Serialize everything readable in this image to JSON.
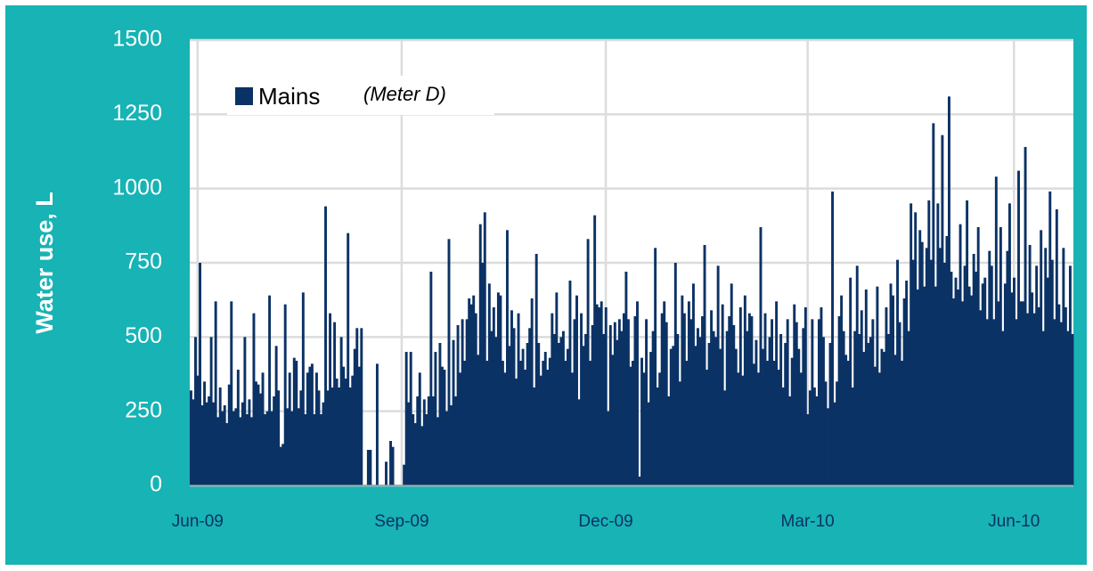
{
  "chart_data": {
    "type": "bar",
    "y_label": "Water use, L",
    "annotation": "(Meter D)",
    "ylim": [
      0,
      1500
    ],
    "yticks": [
      0,
      250,
      500,
      750,
      1000,
      1250,
      1500
    ],
    "grid": true,
    "legend": "top-left",
    "categories": [
      null,
      null,
      null,
      "Jun-09",
      null,
      null,
      null,
      null,
      null,
      null,
      null,
      null,
      null,
      null,
      null,
      null,
      null,
      null,
      null,
      null,
      null,
      null,
      null,
      null,
      null,
      null,
      null,
      null,
      null,
      null,
      null,
      null,
      null,
      null,
      null,
      null,
      null,
      null,
      null,
      null,
      null,
      null,
      null,
      null,
      null,
      null,
      null,
      null,
      null,
      null,
      null,
      null,
      null,
      null,
      null,
      null,
      null,
      null,
      null,
      null,
      null,
      null,
      null,
      null,
      null,
      null,
      null,
      null,
      null,
      null,
      null,
      null,
      null,
      null,
      null,
      null,
      null,
      null,
      null,
      null,
      null,
      null,
      null,
      null,
      null,
      null,
      null,
      null,
      null,
      null,
      null,
      null,
      null,
      null,
      "Sep-09",
      null,
      null,
      null,
      null,
      null,
      null,
      null,
      null,
      null,
      null,
      null,
      null,
      null,
      null,
      null,
      null,
      null,
      null,
      null,
      null,
      null,
      null,
      null,
      null,
      null,
      null,
      null,
      null,
      null,
      null,
      null,
      null,
      null,
      null,
      null,
      null,
      null,
      null,
      null,
      null,
      null,
      null,
      null,
      null,
      null,
      null,
      null,
      null,
      null,
      null,
      null,
      null,
      null,
      null,
      null,
      null,
      null,
      null,
      null,
      null,
      null,
      null,
      null,
      null,
      null,
      null,
      null,
      null,
      null,
      null,
      null,
      null,
      null,
      null,
      null,
      null,
      null,
      null,
      null,
      null,
      null,
      null,
      null,
      null,
      null,
      null,
      null,
      null,
      null,
      null,
      "Dec-09",
      null,
      null,
      null,
      null,
      null,
      null,
      null,
      null,
      null,
      null,
      null,
      null,
      null,
      null,
      null,
      null,
      null,
      null,
      null,
      null,
      null,
      null,
      null,
      null,
      null,
      null,
      null,
      null,
      null,
      null,
      null,
      null,
      null,
      null,
      null,
      null,
      null,
      null,
      null,
      null,
      null,
      null,
      null,
      null,
      null,
      null,
      null,
      null,
      null,
      null,
      null,
      null,
      null,
      null,
      null,
      null,
      null,
      null,
      null,
      null,
      null,
      null,
      null,
      null,
      null,
      null,
      null,
      null,
      null,
      null,
      null,
      null,
      null,
      null,
      null,
      null,
      null,
      null,
      null,
      null,
      null,
      null,
      null,
      null,
      null,
      null,
      null,
      null,
      null,
      "Mar-10",
      null,
      null,
      null,
      null,
      null,
      null,
      null,
      null,
      null,
      null,
      null,
      null,
      null,
      null,
      null,
      null,
      null,
      null,
      null,
      null,
      null,
      null,
      null,
      null,
      null,
      null,
      null,
      null,
      null,
      null,
      null,
      null,
      null,
      null,
      null,
      null,
      null,
      null,
      null,
      null,
      null,
      null,
      null,
      null,
      null,
      null,
      null,
      null,
      null,
      null,
      null,
      null,
      null,
      null,
      null,
      null,
      null,
      null,
      null,
      null,
      null,
      null,
      null,
      null,
      null,
      null,
      null,
      null,
      null,
      null,
      null,
      null,
      null,
      null,
      null,
      null,
      null,
      null,
      null,
      null,
      null,
      null,
      null,
      null,
      null,
      null,
      null,
      null,
      null,
      null,
      null,
      "Jun-10",
      null,
      null,
      null,
      null,
      null,
      null,
      null,
      null,
      null,
      null,
      null,
      null,
      null,
      null,
      null,
      null,
      null,
      null,
      null,
      null,
      null,
      null,
      null,
      null,
      null,
      null
    ],
    "series": [
      {
        "name": "Mains",
        "color": "#0b3265",
        "values": [
          320,
          290,
          500,
          370,
          750,
          270,
          350,
          280,
          300,
          500,
          280,
          620,
          230,
          330,
          250,
          270,
          210,
          340,
          620,
          250,
          260,
          390,
          230,
          280,
          500,
          240,
          290,
          230,
          580,
          350,
          340,
          310,
          380,
          240,
          250,
          640,
          250,
          300,
          470,
          320,
          130,
          140,
          610,
          260,
          380,
          250,
          430,
          420,
          260,
          320,
          650,
          240,
          380,
          400,
          410,
          240,
          380,
          320,
          240,
          280,
          940,
          320,
          580,
          330,
          550,
          360,
          330,
          500,
          400,
          360,
          850,
          330,
          370,
          460,
          530,
          400,
          530,
          0,
          0,
          120,
          120,
          0,
          0,
          410,
          0,
          0,
          0,
          80,
          0,
          150,
          130,
          0,
          0,
          0,
          0,
          70,
          450,
          280,
          450,
          240,
          210,
          300,
          380,
          200,
          290,
          240,
          300,
          720,
          300,
          450,
          230,
          480,
          400,
          390,
          250,
          830,
          270,
          490,
          300,
          540,
          380,
          560,
          420,
          560,
          630,
          610,
          640,
          580,
          440,
          880,
          750,
          920,
          420,
          680,
          520,
          600,
          500,
          650,
          640,
          420,
          380,
          860,
          470,
          590,
          530,
          360,
          580,
          420,
          460,
          390,
          480,
          530,
          630,
          330,
          780,
          480,
          370,
          420,
          450,
          390,
          430,
          580,
          510,
          650,
          480,
          500,
          520,
          420,
          460,
          690,
          380,
          560,
          640,
          290,
          580,
          470,
          510,
          830,
          420,
          540,
          910,
          610,
          600,
          620,
          510,
          600,
          250,
          540,
          440,
          550,
          490,
          560,
          520,
          580,
          720,
          560,
          400,
          420,
          570,
          620,
          30,
          430,
          380,
          560,
          280,
          450,
          520,
          800,
          330,
          380,
          580,
          620,
          550,
          300,
          460,
          470,
          750,
          510,
          350,
          640,
          580,
          420,
          620,
          560,
          680,
          470,
          530,
          500,
          570,
          810,
          390,
          480,
          590,
          520,
          500,
          740,
          460,
          610,
          320,
          520,
          570,
          680,
          540,
          460,
          380,
          600,
          370,
          640,
          520,
          580,
          570,
          410,
          490,
          380,
          870,
          460,
          580,
          420,
          500,
          560,
          420,
          620,
          390,
          510,
          330,
          480,
          560,
          300,
          430,
          610,
          550,
          460,
          380,
          530,
          600,
          240,
          320,
          560,
          330,
          300,
          560,
          600,
          500,
          350,
          260,
          480,
          990,
          280,
          350,
          570,
          640,
          520,
          440,
          420,
          700,
          330,
          520,
          740,
          510,
          590,
          450,
          660,
          480,
          500,
          560,
          400,
          670,
          380,
          460,
          450,
          600,
          510,
          680,
          640,
          440,
          760,
          550,
          420,
          630,
          690,
          520,
          950,
          760,
          920,
          660,
          860,
          820,
          670,
          800,
          960,
          760,
          1220,
          670,
          950,
          800,
          1180,
          750,
          840,
          1310,
          720,
          630,
          700,
          660,
          880,
          620,
          740,
          960,
          670,
          640,
          780,
          720,
          870,
          590,
          680,
          700,
          560,
          790,
          740,
          560,
          1040,
          620,
          870,
          520,
          680,
          790,
          950,
          650,
          700,
          560,
          1060,
          620,
          620,
          1140,
          580,
          810,
          650,
          580,
          740,
          600,
          860,
          520,
          800,
          700,
          990,
          760,
          560,
          930,
          610,
          550,
          800,
          600,
          520,
          740,
          510
        ]
      }
    ]
  }
}
